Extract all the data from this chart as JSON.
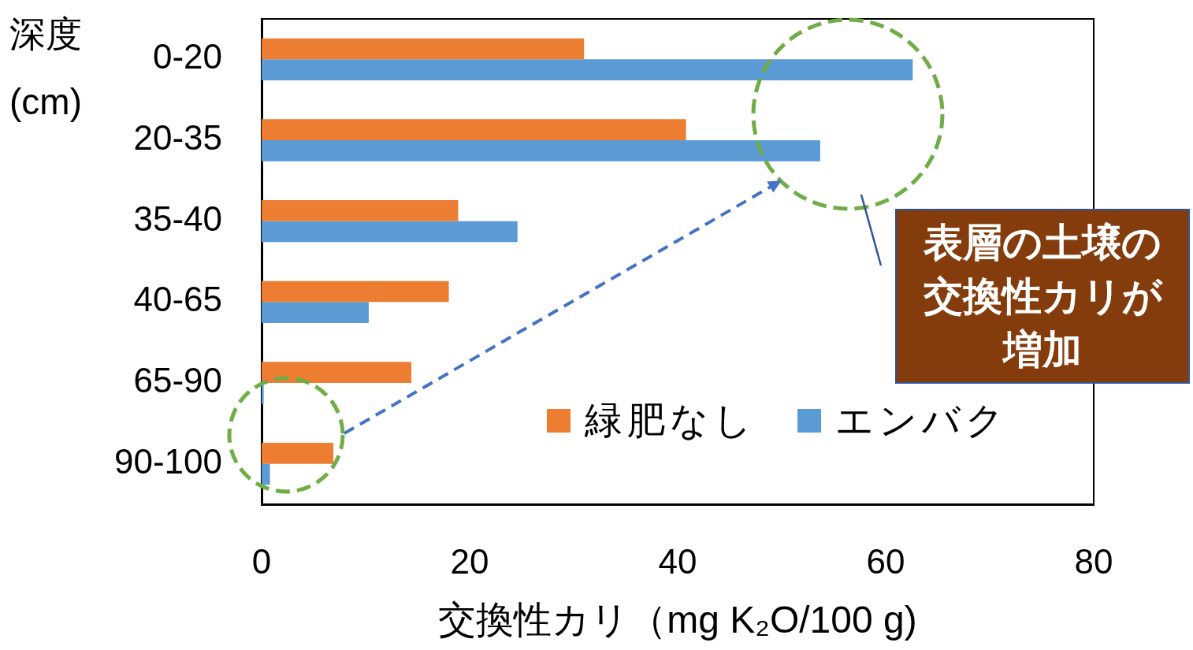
{
  "chart_data": {
    "type": "bar",
    "orientation": "horizontal",
    "categories": [
      "0-20",
      "20-35",
      "35-40",
      "40-65",
      "65-90",
      "90-100"
    ],
    "series": [
      {
        "name": "緑肥なし",
        "color": "#ed7d31",
        "values": [
          31.0,
          40.8,
          18.9,
          18.0,
          14.4,
          6.9
        ]
      },
      {
        "name": "エンバク",
        "color": "#5b9bd5",
        "values": [
          62.6,
          53.7,
          24.6,
          10.3,
          0.2,
          0.8
        ]
      }
    ],
    "xlim": [
      0,
      80
    ],
    "xticks": [
      0,
      20,
      40,
      60,
      80
    ],
    "xlabel": "交換性カリ（mg K₂O/100 g)",
    "ylabel": "深度\n(cm)",
    "legend": "bottom right",
    "annotations": [
      "表層の土壌の交換性カリが増加"
    ]
  }
}
